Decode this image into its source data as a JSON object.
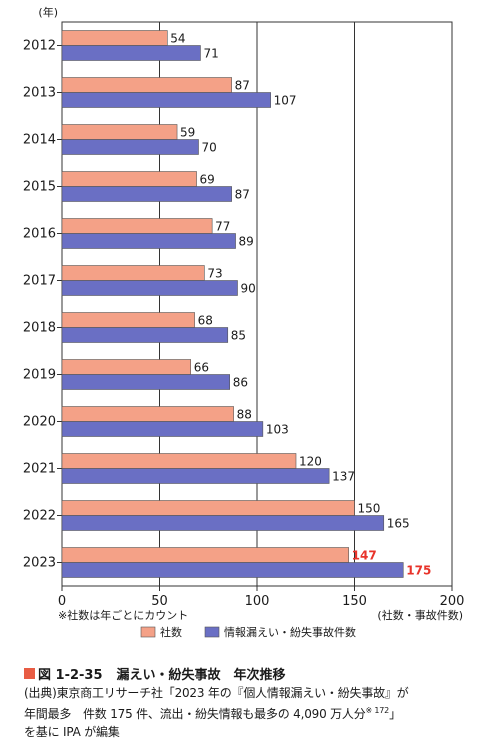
{
  "chart_data": {
    "type": "bar",
    "orientation": "horizontal",
    "year_unit_label": "(年)",
    "categories": [
      "2012",
      "2013",
      "2014",
      "2015",
      "2016",
      "2017",
      "2018",
      "2019",
      "2020",
      "2021",
      "2022",
      "2023"
    ],
    "series": [
      {
        "name": "社数",
        "color": "#f4a187",
        "values": [
          54,
          87,
          59,
          69,
          77,
          73,
          68,
          66,
          88,
          120,
          150,
          147
        ]
      },
      {
        "name": "情報漏えい・紛失事故件数",
        "color": "#6a6fc4",
        "values": [
          71,
          107,
          70,
          87,
          89,
          90,
          85,
          86,
          103,
          137,
          165,
          175
        ]
      }
    ],
    "highlight_color": "#e8332a",
    "xlim": [
      0,
      200
    ],
    "xticks": [
      "0",
      "50",
      "100",
      "150",
      "200"
    ],
    "xlabel": "(社数・事故件数)",
    "note": "※社数は年ごとにカウント",
    "grid": true,
    "legend_position": "bottom"
  },
  "caption": {
    "figure_number": "図 1-2-35",
    "figure_title": "漏えい・紛失事故　年次推移",
    "source_line1": "(出典)東京商工リサーチ社「2023 年の『個人情報漏えい・紛失事故』が",
    "source_line2_pre": "年間最多　件数 175 件、流出・紛失情報も最多の 4,090 万人分",
    "source_sup": "※ 172",
    "source_line2_post": "」",
    "source_line3": "を基に IPA が編集"
  }
}
